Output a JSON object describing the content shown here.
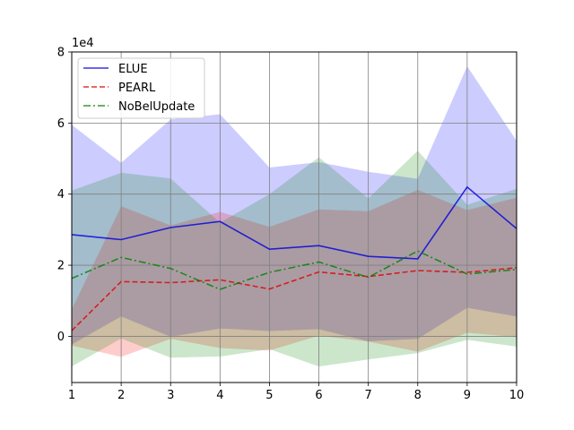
{
  "chart_data": {
    "type": "line",
    "x": [
      1,
      2,
      3,
      4,
      5,
      6,
      7,
      8,
      9,
      10
    ],
    "xlim": [
      1,
      10
    ],
    "ylim": [
      -13000,
      80000
    ],
    "x_ticks": [
      "1",
      "2",
      "3",
      "4",
      "5",
      "6",
      "7",
      "8",
      "9",
      "10"
    ],
    "y_ticks": [
      0,
      20000,
      40000,
      60000,
      80000
    ],
    "y_tick_labels": [
      "0",
      "2",
      "4",
      "6",
      "8"
    ],
    "y_offset_label": "1e4",
    "grid": true,
    "legend_position": "top-left",
    "series": [
      {
        "name": "ELUE",
        "color": "#0000dd",
        "fill_color": "#0000ff",
        "line_style": "solid",
        "values": [
          28600,
          27200,
          30600,
          32300,
          24500,
          25500,
          22500,
          21800,
          42000,
          30300
        ],
        "upper": [
          59500,
          48800,
          61000,
          62500,
          47500,
          49000,
          46300,
          44300,
          76000,
          55000
        ],
        "lower": [
          -2300,
          5600,
          -100,
          2200,
          1500,
          2000,
          -1400,
          -700,
          8000,
          5600
        ]
      },
      {
        "name": "PEARL",
        "color": "#dd0000",
        "fill_color": "#ff0000",
        "line_style": "dashed",
        "values": [
          1600,
          15400,
          15100,
          15900,
          13300,
          18100,
          16800,
          18500,
          18000,
          19300
        ],
        "upper": [
          7500,
          36600,
          31200,
          35000,
          30800,
          35700,
          35200,
          41200,
          35500,
          39000
        ],
        "lower": [
          -2600,
          -5800,
          -700,
          -3300,
          -4000,
          200,
          -1500,
          -4300,
          1000,
          -200
        ]
      },
      {
        "name": "NoBelUpdate",
        "color": "#008000",
        "fill_color": "#008000",
        "line_style": "dashdot",
        "values": [
          16300,
          22200,
          19100,
          13200,
          18000,
          20900,
          16600,
          24000,
          17500,
          18800
        ],
        "upper": [
          41000,
          46000,
          44400,
          32000,
          40000,
          50400,
          38800,
          52200,
          37000,
          41500
        ],
        "lower": [
          -8500,
          -600,
          -6000,
          -5700,
          -3600,
          -8500,
          -6500,
          -4700,
          -1000,
          -2900
        ]
      }
    ]
  }
}
